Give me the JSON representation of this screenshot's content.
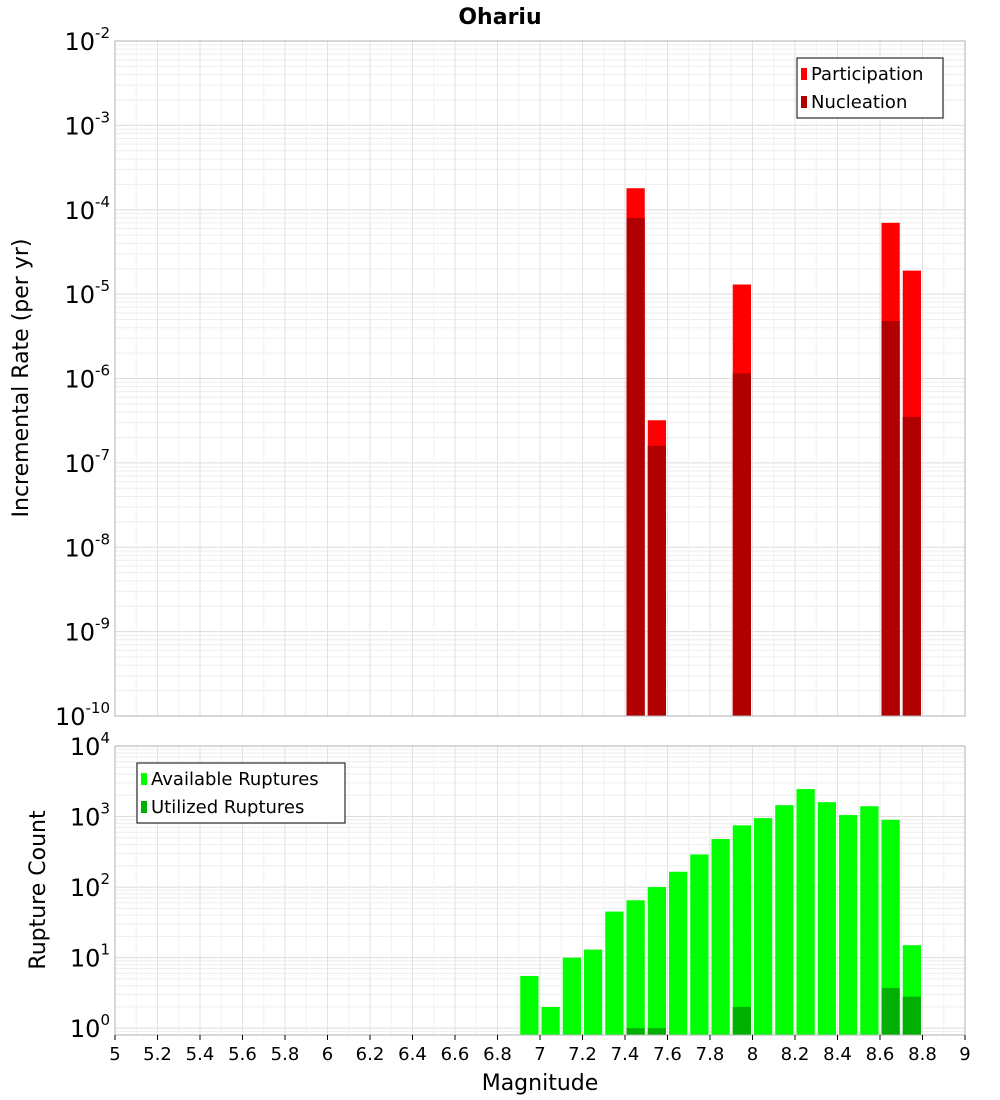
{
  "chart_data": [
    {
      "type": "bar",
      "title": "Ohariu",
      "xlabel": "",
      "ylabel": "Incremental Rate (per yr)",
      "yscale": "log",
      "ylim": [
        1e-10,
        0.01
      ],
      "xlim": [
        5,
        9
      ],
      "bar_width": 0.1,
      "legend_position": "top-right",
      "grid": true,
      "x": [
        7.45,
        7.55,
        7.95,
        8.65,
        8.75
      ],
      "series": [
        {
          "name": "Participation",
          "color": "#ff0000",
          "values": [
            0.00018,
            3.2e-07,
            1.3e-05,
            7e-05,
            1.9e-05
          ]
        },
        {
          "name": "Nucleation",
          "color": "#b00000",
          "values": [
            8e-05,
            1.6e-07,
            1.15e-06,
            4.8e-06,
            3.5e-07
          ]
        }
      ]
    },
    {
      "type": "bar",
      "title": "",
      "xlabel": "Magnitude",
      "ylabel": "Rupture Count",
      "yscale": "log",
      "ylim": [
        0.8,
        10000
      ],
      "xlim": [
        5,
        9
      ],
      "xticks": [
        "5",
        "5.2",
        "5.4",
        "5.6",
        "5.8",
        "6",
        "6.2",
        "6.4",
        "6.6",
        "6.8",
        "7",
        "7.2",
        "7.4",
        "7.6",
        "7.8",
        "8",
        "8.2",
        "8.4",
        "8.6",
        "8.8",
        "9"
      ],
      "bar_width": 0.1,
      "legend_position": "top-left",
      "grid": true,
      "x": [
        6.95,
        7.05,
        7.15,
        7.25,
        7.35,
        7.45,
        7.55,
        7.65,
        7.75,
        7.85,
        7.95,
        8.05,
        8.15,
        8.25,
        8.35,
        8.45,
        8.55,
        8.65,
        8.75
      ],
      "series": [
        {
          "name": "Available Ruptures",
          "color": "#00ff00",
          "values": [
            5.5,
            2,
            10,
            13,
            45,
            65,
            100,
            165,
            290,
            480,
            750,
            950,
            1450,
            2450,
            1600,
            1050,
            1400,
            900,
            15
          ]
        },
        {
          "name": "Utilized Ruptures",
          "color": "#00b000",
          "values": [
            0,
            0,
            0,
            0,
            0,
            1,
            1,
            0,
            0,
            0,
            2,
            0,
            0,
            0,
            0,
            0,
            0,
            3.7,
            2.8
          ]
        }
      ]
    }
  ]
}
